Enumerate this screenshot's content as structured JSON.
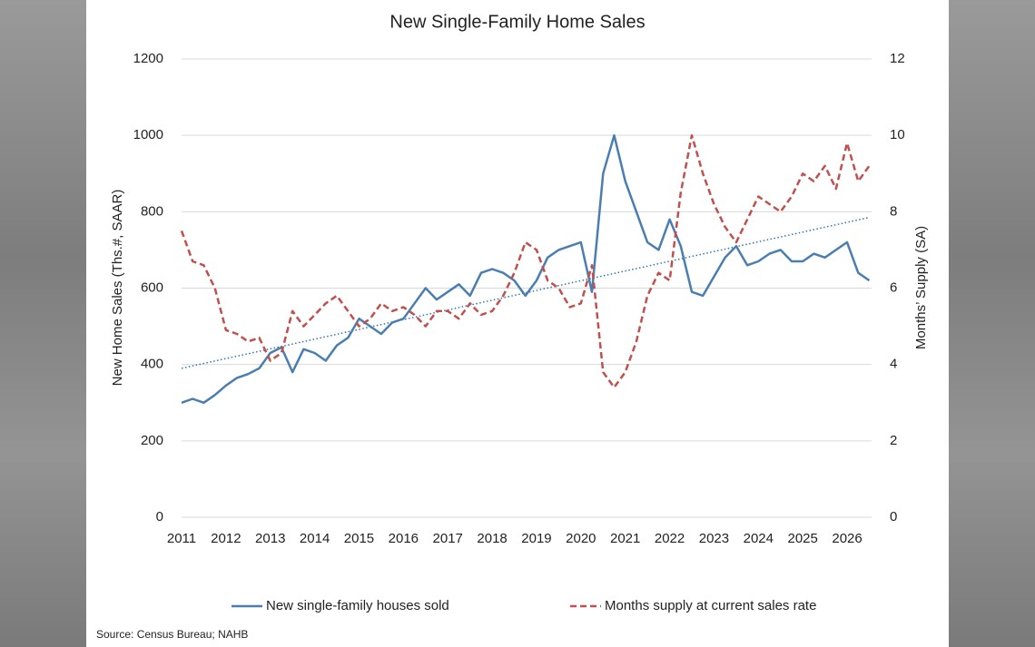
{
  "chart_data": {
    "type": "line",
    "title": "New Single-Family Home Sales",
    "ylabel": "New Home Sales (Ths.#, SAAR)",
    "y2label": "Months’ Supply (SA)",
    "source": "Source: Census Bureau; NAHB",
    "grid": true,
    "legend": "bottom",
    "xlim": [
      2011,
      2026.55
    ],
    "xticks": [
      2011,
      2012,
      2013,
      2014,
      2015,
      2016,
      2017,
      2018,
      2019,
      2020,
      2021,
      2022,
      2023,
      2024,
      2025,
      2026
    ],
    "ylim": [
      0,
      1200
    ],
    "yticks": [
      0,
      200,
      400,
      600,
      800,
      1000,
      1200
    ],
    "y2lim": [
      0,
      12
    ],
    "y2ticks": [
      0,
      2,
      4,
      6,
      8,
      10,
      12
    ],
    "x": [
      2011,
      2011.25,
      2011.5,
      2011.75,
      2012,
      2012.25,
      2012.5,
      2012.75,
      2013,
      2013.25,
      2013.5,
      2013.75,
      2014,
      2014.25,
      2014.5,
      2014.75,
      2015,
      2015.25,
      2015.5,
      2015.75,
      2016,
      2016.25,
      2016.5,
      2016.75,
      2017,
      2017.25,
      2017.5,
      2017.75,
      2018,
      2018.25,
      2018.5,
      2018.75,
      2019,
      2019.25,
      2019.5,
      2019.75,
      2020,
      2020.25,
      2020.5,
      2020.75,
      2021,
      2021.25,
      2021.5,
      2021.75,
      2022,
      2022.25,
      2022.5,
      2022.75,
      2023,
      2023.25,
      2023.5,
      2023.75,
      2024,
      2024.25,
      2024.5,
      2024.75,
      2025,
      2025.25,
      2025.5,
      2025.75,
      2026,
      2026.25,
      2026.5
    ],
    "series": [
      {
        "name": "New single-family houses sold",
        "color": "#4a7eb0",
        "dash": "solid",
        "values": [
          300,
          310,
          300,
          320,
          345,
          365,
          375,
          390,
          430,
          445,
          380,
          440,
          430,
          410,
          450,
          470,
          520,
          500,
          480,
          510,
          520,
          560,
          600,
          570,
          590,
          610,
          580,
          640,
          650,
          640,
          620,
          580,
          620,
          680,
          700,
          710,
          720,
          590,
          900,
          1000,
          880,
          800,
          720,
          700,
          780,
          710,
          590,
          580,
          630,
          680,
          710,
          660,
          670,
          690,
          700,
          670,
          670,
          690,
          680,
          700,
          720,
          640,
          620
        ]
      },
      {
        "name": "Months supply at current sales rate",
        "color": "#c0504d",
        "dash": "dashed",
        "axis": "y2",
        "values": [
          7.5,
          6.7,
          6.6,
          6.0,
          4.9,
          4.8,
          4.6,
          4.7,
          4.1,
          4.3,
          5.4,
          5.0,
          5.3,
          5.6,
          5.8,
          5.4,
          5.0,
          5.2,
          5.6,
          5.4,
          5.5,
          5.3,
          5.0,
          5.4,
          5.4,
          5.2,
          5.6,
          5.3,
          5.4,
          5.8,
          6.4,
          7.2,
          7.0,
          6.2,
          6.0,
          5.5,
          5.6,
          6.6,
          3.8,
          3.4,
          3.8,
          4.6,
          5.8,
          6.4,
          6.2,
          8.5,
          10.0,
          9.0,
          8.2,
          7.6,
          7.2,
          7.8,
          8.4,
          8.2,
          8.0,
          8.4,
          9.0,
          8.8,
          9.2,
          8.6,
          9.8,
          8.8,
          9.2
        ]
      }
    ],
    "trendline": {
      "x": [
        2011,
        2026.5
      ],
      "values": [
        390,
        785
      ],
      "color": "#2e75b6"
    }
  }
}
